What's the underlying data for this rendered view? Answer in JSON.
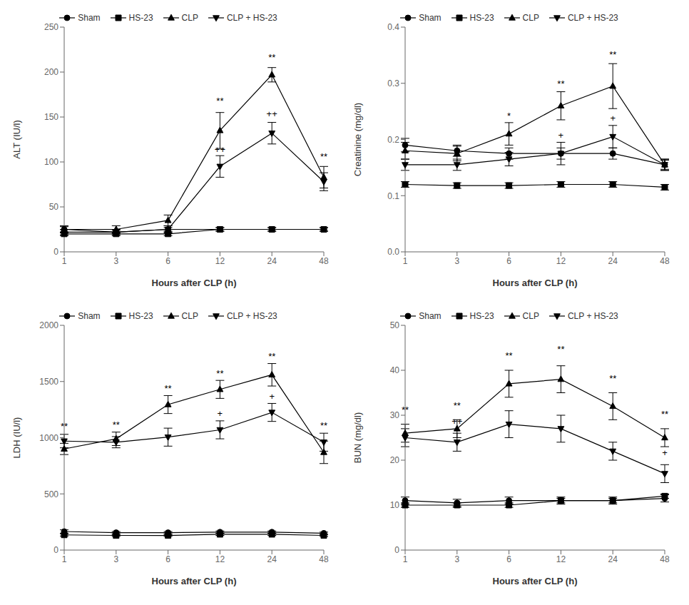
{
  "chart_data": [
    {
      "type": "line",
      "x_label": "Hours after CLP (h)",
      "y_label": "ALT (IU/l)",
      "categories": [
        1,
        3,
        6,
        12,
        24,
        48
      ],
      "ylim": [
        0,
        250
      ],
      "yticks": [
        0,
        50,
        100,
        150,
        200,
        250
      ],
      "grid": false,
      "legend": "top",
      "series": [
        {
          "name": "Sham",
          "color": "#000000",
          "marker": "circle",
          "values": [
            25,
            22,
            25,
            25,
            25,
            25
          ],
          "yerr": [
            3,
            2,
            2,
            2,
            2,
            2
          ]
        },
        {
          "name": "HS-23",
          "color": "#000000",
          "marker": "square",
          "values": [
            20,
            20,
            20,
            25,
            25,
            25
          ],
          "yerr": [
            2,
            2,
            2,
            2,
            2,
            2
          ]
        },
        {
          "name": "CLP",
          "color": "#000000",
          "marker": "triangle-up",
          "values": [
            25,
            25,
            35,
            135,
            197,
            83
          ],
          "yerr": [
            4,
            4,
            6,
            20,
            8,
            12
          ]
        },
        {
          "name": "CLP + HS-23",
          "color": "#000000",
          "marker": "triangle-down",
          "values": [
            22,
            22,
            25,
            95,
            132,
            78
          ],
          "yerr": [
            3,
            3,
            4,
            12,
            12,
            10
          ]
        }
      ],
      "annotations": [
        {
          "x": 12,
          "y": 162,
          "text": "**"
        },
        {
          "x": 12,
          "y": 108,
          "text": "++"
        },
        {
          "x": 24,
          "y": 210,
          "text": "**"
        },
        {
          "x": 24,
          "y": 148,
          "text": "++"
        },
        {
          "x": 48,
          "y": 100,
          "text": "**"
        }
      ]
    },
    {
      "type": "line",
      "x_label": "Hours after CLP (h)",
      "y_label": "Creatinine (mg/dl)",
      "categories": [
        1,
        3,
        6,
        12,
        24,
        48
      ],
      "ylim": [
        0.0,
        0.4
      ],
      "yticks": [
        {
          "value": 0,
          "label": "0.0"
        },
        0.1,
        0.2,
        0.3,
        0.4
      ],
      "grid": false,
      "legend": "top",
      "series": [
        {
          "name": "Sham",
          "color": "#000000",
          "marker": "circle",
          "values": [
            0.19,
            0.18,
            0.175,
            0.175,
            0.175,
            0.155
          ],
          "yerr": [
            0.012,
            0.01,
            0.01,
            0.01,
            0.01,
            0.008
          ]
        },
        {
          "name": "HS-23",
          "color": "#000000",
          "marker": "square",
          "values": [
            0.12,
            0.118,
            0.118,
            0.12,
            0.12,
            0.115
          ],
          "yerr": [
            0.005,
            0.005,
            0.005,
            0.005,
            0.005,
            0.005
          ]
        },
        {
          "name": "CLP",
          "color": "#000000",
          "marker": "triangle-up",
          "values": [
            0.18,
            0.175,
            0.21,
            0.26,
            0.295,
            0.155
          ],
          "yerr": [
            0.015,
            0.013,
            0.02,
            0.025,
            0.04,
            0.01
          ]
        },
        {
          "name": "CLP + HS-23",
          "color": "#000000",
          "marker": "triangle-down",
          "values": [
            0.155,
            0.155,
            0.165,
            0.175,
            0.205,
            0.155
          ],
          "yerr": [
            0.01,
            0.01,
            0.012,
            0.02,
            0.02,
            0.01
          ]
        }
      ],
      "annotations": [
        {
          "x": 6,
          "y": 0.232,
          "text": "*"
        },
        {
          "x": 12,
          "y": 0.29,
          "text": "**"
        },
        {
          "x": 12,
          "y": 0.198,
          "text": "+"
        },
        {
          "x": 24,
          "y": 0.342,
          "text": "**"
        },
        {
          "x": 24,
          "y": 0.228,
          "text": "+"
        }
      ]
    },
    {
      "type": "line",
      "x_label": "Hours after CLP (h)",
      "y_label": "LDH (IU/l)",
      "categories": [
        1,
        3,
        6,
        12,
        24,
        48
      ],
      "ylim": [
        0,
        2000
      ],
      "yticks": [
        0,
        500,
        1000,
        1500,
        2000
      ],
      "grid": false,
      "legend": "top",
      "series": [
        {
          "name": "Sham",
          "color": "#000000",
          "marker": "circle",
          "values": [
            165,
            155,
            155,
            160,
            160,
            150
          ],
          "yerr": [
            15,
            10,
            10,
            10,
            10,
            10
          ]
        },
        {
          "name": "HS-23",
          "color": "#000000",
          "marker": "square",
          "values": [
            135,
            130,
            130,
            140,
            140,
            130
          ],
          "yerr": [
            10,
            8,
            8,
            10,
            10,
            8
          ]
        },
        {
          "name": "CLP",
          "color": "#000000",
          "marker": "triangle-up",
          "values": [
            900,
            990,
            1295,
            1430,
            1560,
            870
          ],
          "yerr": [
            50,
            60,
            80,
            80,
            100,
            100
          ]
        },
        {
          "name": "CLP + HS-23",
          "color": "#000000",
          "marker": "triangle-down",
          "values": [
            970,
            960,
            1005,
            1070,
            1225,
            960
          ],
          "yerr": [
            60,
            50,
            80,
            80,
            80,
            80
          ]
        }
      ],
      "annotations": [
        {
          "x": 1,
          "y": 1055,
          "text": "**"
        },
        {
          "x": 3,
          "y": 1065,
          "text": "**"
        },
        {
          "x": 6,
          "y": 1390,
          "text": "**"
        },
        {
          "x": 12,
          "y": 1525,
          "text": "**"
        },
        {
          "x": 12,
          "y": 1168,
          "text": "+"
        },
        {
          "x": 24,
          "y": 1675,
          "text": "**"
        },
        {
          "x": 24,
          "y": 1318,
          "text": "+"
        },
        {
          "x": 48,
          "y": 1062,
          "text": "**"
        }
      ]
    },
    {
      "type": "line",
      "x_label": "Hours after CLP (h)",
      "y_label": "BUN (mg/dl)",
      "categories": [
        1,
        3,
        6,
        12,
        24,
        48
      ],
      "ylim": [
        0,
        50
      ],
      "yticks": [
        0,
        10,
        20,
        30,
        40,
        50
      ],
      "grid": false,
      "legend": "top",
      "series": [
        {
          "name": "Sham",
          "color": "#000000",
          "marker": "circle",
          "values": [
            11.0,
            10.5,
            11.0,
            11.0,
            11.0,
            11.5
          ],
          "yerr": [
            0.8,
            0.8,
            0.8,
            0.8,
            0.8,
            0.8
          ]
        },
        {
          "name": "HS-23",
          "color": "#000000",
          "marker": "square",
          "values": [
            10.0,
            10.0,
            10.0,
            11.0,
            11.0,
            12.0
          ],
          "yerr": [
            0.5,
            0.5,
            0.5,
            0.5,
            0.5,
            0.5
          ]
        },
        {
          "name": "CLP",
          "color": "#000000",
          "marker": "triangle-up",
          "values": [
            26.0,
            27.0,
            37.0,
            38.0,
            32.0,
            25.0
          ],
          "yerr": [
            2.0,
            2.0,
            3.0,
            3.0,
            3.0,
            2.0
          ]
        },
        {
          "name": "CLP + HS-23",
          "color": "#000000",
          "marker": "triangle-down",
          "values": [
            25.0,
            24.0,
            28.0,
            27.0,
            22.0,
            17.0
          ],
          "yerr": [
            2.0,
            2.0,
            3.0,
            3.0,
            2.0,
            2.0
          ]
        }
      ],
      "annotations": [
        {
          "x": 1,
          "y": 30.0,
          "text": "**"
        },
        {
          "x": 3,
          "y": 31.0,
          "text": "**"
        },
        {
          "x": 3,
          "y": 27.5,
          "text": "++"
        },
        {
          "x": 6,
          "y": 42.0,
          "text": "**"
        },
        {
          "x": 12,
          "y": 43.5,
          "text": "**"
        },
        {
          "x": 24,
          "y": 37.0,
          "text": "**"
        },
        {
          "x": 48,
          "y": 29.0,
          "text": "**"
        },
        {
          "x": 48,
          "y": 20.5,
          "text": "+"
        }
      ]
    }
  ]
}
